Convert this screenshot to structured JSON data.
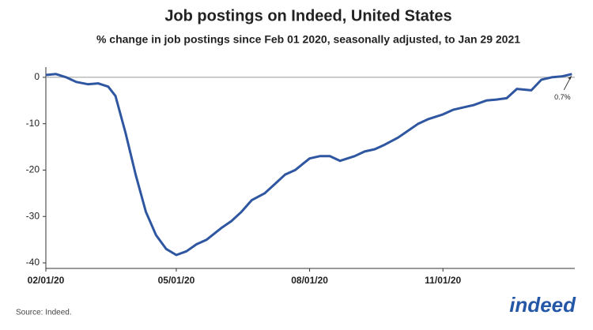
{
  "chart_data": {
    "type": "line",
    "title": "Job postings on Indeed, United States",
    "subtitle": "% change in job postings since Feb 01 2020, seasonally adjusted, to Jan 29 2021",
    "x": [
      "2020-02-01",
      "2020-02-08",
      "2020-02-15",
      "2020-02-22",
      "2020-03-01",
      "2020-03-08",
      "2020-03-15",
      "2020-03-20",
      "2020-03-27",
      "2020-04-03",
      "2020-04-10",
      "2020-04-17",
      "2020-04-24",
      "2020-05-01",
      "2020-05-08",
      "2020-05-15",
      "2020-05-22",
      "2020-06-01",
      "2020-06-08",
      "2020-06-15",
      "2020-06-22",
      "2020-07-01",
      "2020-07-08",
      "2020-07-15",
      "2020-07-22",
      "2020-08-01",
      "2020-08-08",
      "2020-08-15",
      "2020-08-22",
      "2020-09-01",
      "2020-09-08",
      "2020-09-15",
      "2020-09-22",
      "2020-10-01",
      "2020-10-08",
      "2020-10-15",
      "2020-10-22",
      "2020-11-01",
      "2020-11-08",
      "2020-11-15",
      "2020-11-22",
      "2020-12-01",
      "2020-12-08",
      "2020-12-15",
      "2020-12-22",
      "2021-01-01",
      "2021-01-08",
      "2021-01-15",
      "2021-01-22",
      "2021-01-29"
    ],
    "series": [
      {
        "name": "Job postings",
        "color": "#2f56a0",
        "values": [
          0.5,
          0.7,
          0,
          -1,
          -1.5,
          -1.3,
          -2,
          -4,
          -12,
          -21,
          -29,
          -34,
          -37,
          -38.3,
          -37.5,
          -36,
          -35,
          -32.5,
          -31,
          -29,
          -26.5,
          -25,
          -23,
          -21,
          -20,
          -17.5,
          -17,
          -17,
          -18,
          -17,
          -16,
          -15.5,
          -14.5,
          -13,
          -11.5,
          -10,
          -9,
          -8,
          -7,
          -6.5,
          -6,
          -5,
          -4.8,
          -4.5,
          -2.5,
          -2.8,
          -0.5,
          0,
          0.2,
          0.7
        ]
      }
    ],
    "xlim": [
      "2020-02-01",
      "2021-01-31"
    ],
    "xticks": [
      {
        "value": "2020-02-01",
        "label": "02/01/20"
      },
      {
        "value": "2020-05-01",
        "label": "05/01/20"
      },
      {
        "value": "2020-08-01",
        "label": "08/01/20"
      },
      {
        "value": "2020-11-01",
        "label": "11/01/20"
      }
    ],
    "ylim": [
      -41.2,
      2.2
    ],
    "yticks": [
      0,
      -10,
      -20,
      -30,
      -40
    ],
    "zero_line": true,
    "annotation": "0.7%",
    "source": "Source: Indeed.",
    "logo": "indeed"
  }
}
